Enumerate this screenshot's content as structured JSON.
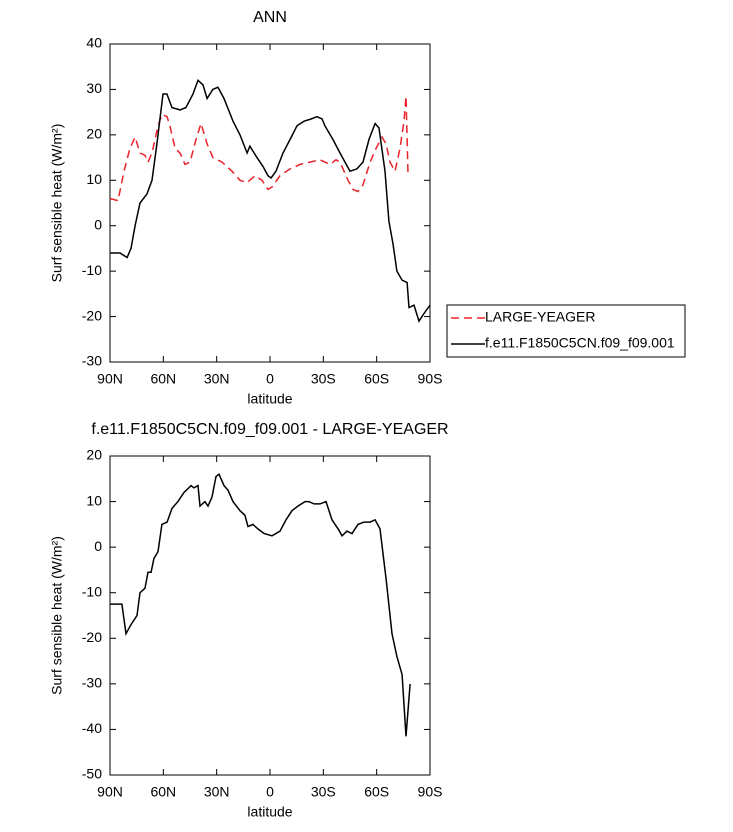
{
  "chart_data": [
    {
      "type": "line",
      "title": "ANN",
      "xlabel": "latitude",
      "ylabel": "Surf sensible heat (W/m²)",
      "xlim": [
        90,
        -90
      ],
      "xticks": [
        {
          "value": 90,
          "label": "90N"
        },
        {
          "value": 60,
          "label": "60N"
        },
        {
          "value": 30,
          "label": "30N"
        },
        0,
        {
          "value": -30,
          "label": "30S"
        },
        {
          "value": -60,
          "label": "60S"
        },
        {
          "value": -90,
          "label": "90S"
        }
      ],
      "ylim": [
        -30,
        40
      ],
      "yticks": [
        -30,
        -20,
        -10,
        0,
        10,
        20,
        30,
        40
      ],
      "legend": "right",
      "series": [
        {
          "name": "LARGE-YEAGER",
          "color": "#e8232a",
          "linestyle": "dashed",
          "x": [
            90,
            85.5,
            82.1,
            78.8,
            75.9,
            73.1,
            70.3,
            68.6,
            66.4,
            63,
            60.8,
            57.9,
            56.3,
            53.4,
            50.6,
            47.8,
            45,
            41.6,
            38.8,
            35.4,
            32.1,
            27,
            21.4,
            16.9,
            12.9,
            8.4,
            4.5,
            1.1,
            -1.1,
            -5.6,
            -11.3,
            -16.9,
            -22.5,
            -28.1,
            -30.9,
            -33.8,
            -37.1,
            -39.4,
            -43.9,
            -46.7,
            -49.5,
            -52.3,
            -56.3,
            -59.6,
            -63,
            -65.3,
            -67.5,
            -70.3,
            -73.1,
            -75.4,
            -76.5,
            -77.6
          ],
          "values": [
            6,
            5.5,
            12,
            17,
            19.5,
            16,
            15.5,
            14,
            16,
            22,
            24.5,
            24,
            22,
            17,
            16,
            13.5,
            14,
            19,
            22.5,
            18,
            15,
            14,
            12,
            10,
            9.5,
            11,
            10,
            8,
            8.5,
            11,
            12.5,
            13.5,
            14,
            14.5,
            14,
            13.5,
            14.5,
            14,
            10,
            8,
            7.5,
            9,
            14,
            17,
            19.5,
            18,
            14,
            12,
            17,
            23,
            28.5,
            11.5
          ]
        },
        {
          "name": "f.e11.F1850C5CN.f09_f09.001",
          "color": "#000000",
          "linestyle": "solid",
          "x": [
            90,
            84.4,
            80.4,
            78.2,
            75.9,
            73.1,
            69.2,
            66.4,
            63.6,
            60.2,
            58,
            55.1,
            50.6,
            47.3,
            43.3,
            40.5,
            37.7,
            35.4,
            32.1,
            29.3,
            25.9,
            20.8,
            16.9,
            12.9,
            11.3,
            7.3,
            3.9,
            1.1,
            -0.6,
            -3.4,
            -7.3,
            -11.3,
            -15.2,
            -19.1,
            -23.1,
            -26.4,
            -29.3,
            -30.9,
            -35.4,
            -39.4,
            -42.2,
            -45,
            -48.9,
            -52.3,
            -55.7,
            -59.1,
            -61.3,
            -64.7,
            -66.9,
            -69.2,
            -71.4,
            -74.3,
            -77.1,
            -78.2,
            -81,
            -83.8,
            -87.2,
            -90
          ],
          "values": [
            -6,
            -6,
            -7,
            -5,
            0,
            5,
            7,
            10,
            18,
            29,
            29,
            26,
            25.5,
            26,
            29,
            32,
            31,
            28,
            30,
            30.5,
            28,
            23,
            20,
            16,
            17.5,
            15,
            13,
            11,
            10.5,
            12,
            16,
            19,
            22,
            23,
            23.5,
            24,
            23.5,
            22,
            19,
            16,
            14,
            12,
            12.5,
            14,
            19,
            22.5,
            21.5,
            12,
            1,
            -4,
            -10,
            -12,
            -12.5,
            -18,
            -17.5,
            -21,
            -19,
            -17.5
          ]
        }
      ]
    },
    {
      "type": "line",
      "title": "f.e11.F1850C5CN.f09_f09.001 - LARGE-YEAGER",
      "xlabel": "latitude",
      "ylabel": "Surf sensible heat (W/m²)",
      "xlim": [
        90,
        -90
      ],
      "xticks": [
        {
          "value": 90,
          "label": "90N"
        },
        {
          "value": 60,
          "label": "60N"
        },
        {
          "value": 30,
          "label": "30N"
        },
        0,
        {
          "value": -30,
          "label": "30S"
        },
        {
          "value": -60,
          "label": "60S"
        },
        {
          "value": -90,
          "label": "90S"
        }
      ],
      "ylim": [
        -50,
        20
      ],
      "yticks": [
        -50,
        -40,
        -30,
        -20,
        -10,
        0,
        10,
        20
      ],
      "series": [
        {
          "color": "#000000",
          "linestyle": "solid",
          "x": [
            90,
            85.5,
            83.3,
            81,
            78.2,
            74.8,
            73.1,
            70.3,
            68.6,
            66.9,
            65.3,
            63,
            60.8,
            57.9,
            55.1,
            51.8,
            48.4,
            44.4,
            42.8,
            40.5,
            39.4,
            36.6,
            34.9,
            32.6,
            30.4,
            28.7,
            25.9,
            23.6,
            20.8,
            16.9,
            14.1,
            12.4,
            9.6,
            6.8,
            3.4,
            -1.1,
            -5.6,
            -9,
            -12.4,
            -15.7,
            -19.7,
            -21.9,
            -24.8,
            -28.1,
            -31.5,
            -34.9,
            -38.3,
            -40.5,
            -43.3,
            -46.1,
            -49.5,
            -52.9,
            -56.3,
            -59.1,
            -61.9,
            -65.3,
            -68.6,
            -71.4,
            -74.3,
            -76.5,
            -78.8
          ],
          "values": [
            -12.5,
            -12.5,
            -12.5,
            -19,
            -17,
            -15,
            -10,
            -9,
            -5.5,
            -5.5,
            -2.5,
            -1,
            5,
            5.5,
            8.5,
            10,
            12,
            13.5,
            13,
            13.5,
            9,
            10,
            9,
            11,
            15.5,
            16,
            13.5,
            12.5,
            10,
            8,
            7,
            4.5,
            5,
            4,
            3,
            2.5,
            3.5,
            6,
            8,
            9,
            10,
            10,
            9.5,
            9.5,
            10,
            6,
            4,
            2.5,
            3.5,
            3,
            5,
            5.5,
            5.5,
            6,
            4,
            -7,
            -19,
            -24,
            -28,
            -41.5,
            -30
          ]
        }
      ]
    }
  ]
}
